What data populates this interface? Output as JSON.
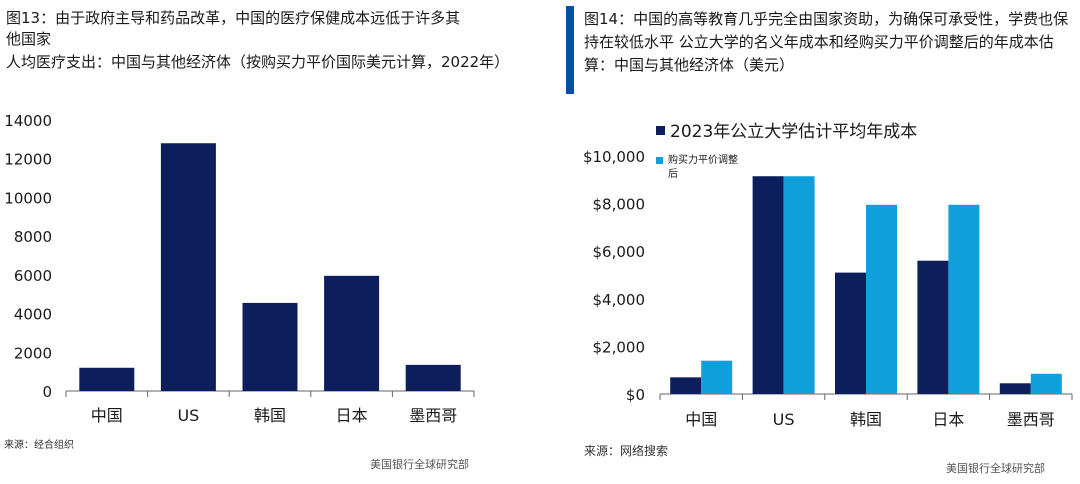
{
  "left": {
    "title_line1": "图13：由于政府主导和药品改革，中国的医疗保健成本远低于许多其他国家",
    "title_line2": "人均医疗支出：中国与其他经济体（按购买力平价国际美元计算，2022年）",
    "source": "来源：经合组织",
    "brand": "美国银行全球研究部"
  },
  "right": {
    "title": "图14：中国的高等教育几乎完全由国家资助，为确保可承受性，学费也保持在较低水平 公立大学的名义年成本和经购买力平价调整后的年成本估算：中国与其他经济体（美元）",
    "source": "来源：网络搜索",
    "brand": "美国银行全球研究部"
  },
  "chart_data": [
    {
      "type": "bar",
      "categories": [
        "中国",
        "US",
        "韩国",
        "日本",
        "墨西哥"
      ],
      "values": [
        1200,
        12800,
        4550,
        5950,
        1350
      ],
      "ylim": [
        0,
        14000
      ],
      "yticks": [
        "0",
        "2000",
        "4000",
        "6000",
        "8000",
        "10000",
        "12000",
        "14000"
      ],
      "grid": false,
      "colors": {
        "bar": "#0c1f5c"
      }
    },
    {
      "type": "bar",
      "categories": [
        "中国",
        "US",
        "韩国",
        "日本",
        "墨西哥"
      ],
      "series": [
        {
          "name": "2023年公立大学估计平均年成本",
          "values": [
            700,
            9150,
            5100,
            5600,
            450
          ],
          "color": "#0c1f5c"
        },
        {
          "name": "购买力平价调整后",
          "values": [
            1400,
            9150,
            7950,
            7950,
            850
          ],
          "color": "#0fa0dc"
        }
      ],
      "ylim": [
        0,
        10000
      ],
      "yticks": [
        "$0",
        "$2,000",
        "$4,000",
        "$6,000",
        "$8,000",
        "$10,000"
      ],
      "legend": "top",
      "grid": false
    }
  ]
}
